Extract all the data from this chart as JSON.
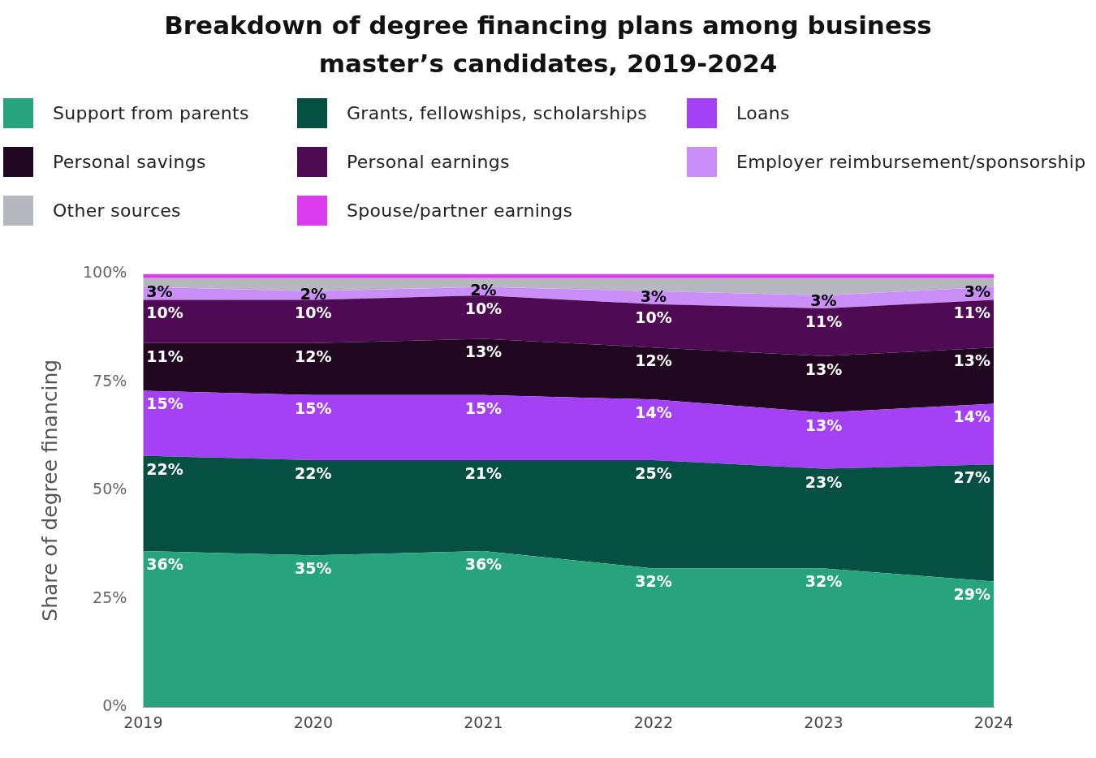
{
  "chart_data": {
    "type": "area",
    "title": "Breakdown of degree financing plans among business master’s candidates, 2019-2024",
    "ylabel": "Share of degree financing",
    "categories": [
      "2019",
      "2020",
      "2021",
      "2022",
      "2023",
      "2024"
    ],
    "stacked": true,
    "ylim": [
      0,
      100
    ],
    "yticks": [
      {
        "value": 0,
        "label": "0%"
      },
      {
        "value": 25,
        "label": "25%"
      },
      {
        "value": 50,
        "label": "50%"
      },
      {
        "value": 75,
        "label": "75%"
      },
      {
        "value": 100,
        "label": "100%"
      }
    ],
    "grid": false,
    "legend": "top",
    "marker": "none",
    "series": [
      {
        "name": "Support from parents",
        "color": "#28a47c",
        "values": [
          36,
          35,
          36,
          32,
          32,
          29
        ],
        "value_labels": [
          "36%",
          "35%",
          "36%",
          "32%",
          "32%",
          "29%"
        ]
      },
      {
        "name": "Grants, fellowships, scholarships",
        "color": "#064f43",
        "values": [
          22,
          22,
          21,
          25,
          23,
          27
        ],
        "value_labels": [
          "22%",
          "22%",
          "21%",
          "25%",
          "23%",
          "27%"
        ]
      },
      {
        "name": "Loans",
        "color": "#a541f5",
        "values": [
          15,
          15,
          15,
          14,
          13,
          14
        ],
        "value_labels": [
          "15%",
          "15%",
          "15%",
          "14%",
          "13%",
          "14%"
        ]
      },
      {
        "name": "Personal savings",
        "color": "#200820",
        "values": [
          11,
          12,
          13,
          12,
          13,
          13
        ],
        "value_labels": [
          "11%",
          "12%",
          "13%",
          "12%",
          "13%",
          "13%"
        ]
      },
      {
        "name": "Personal earnings",
        "color": "#4e0a52",
        "values": [
          10,
          10,
          10,
          10,
          11,
          11
        ],
        "value_labels": [
          "10%",
          "10%",
          "10%",
          "10%",
          "11%",
          "11%"
        ]
      },
      {
        "name": "Employer reimbursement/sponsorship",
        "color": "#ca8ef8",
        "values": [
          3,
          2,
          2,
          3,
          3,
          3
        ],
        "value_labels": [
          "3%",
          "2%",
          "2%",
          "3%",
          "3%",
          "3%"
        ]
      },
      {
        "name": "Other sources",
        "color": "#b6b7bf",
        "values": [
          2,
          3,
          2,
          3,
          4,
          2
        ]
      },
      {
        "name": "Spouse/partner earnings",
        "color": "#dc3cf0",
        "values": [
          1,
          1,
          1,
          1,
          1,
          1
        ]
      }
    ]
  }
}
